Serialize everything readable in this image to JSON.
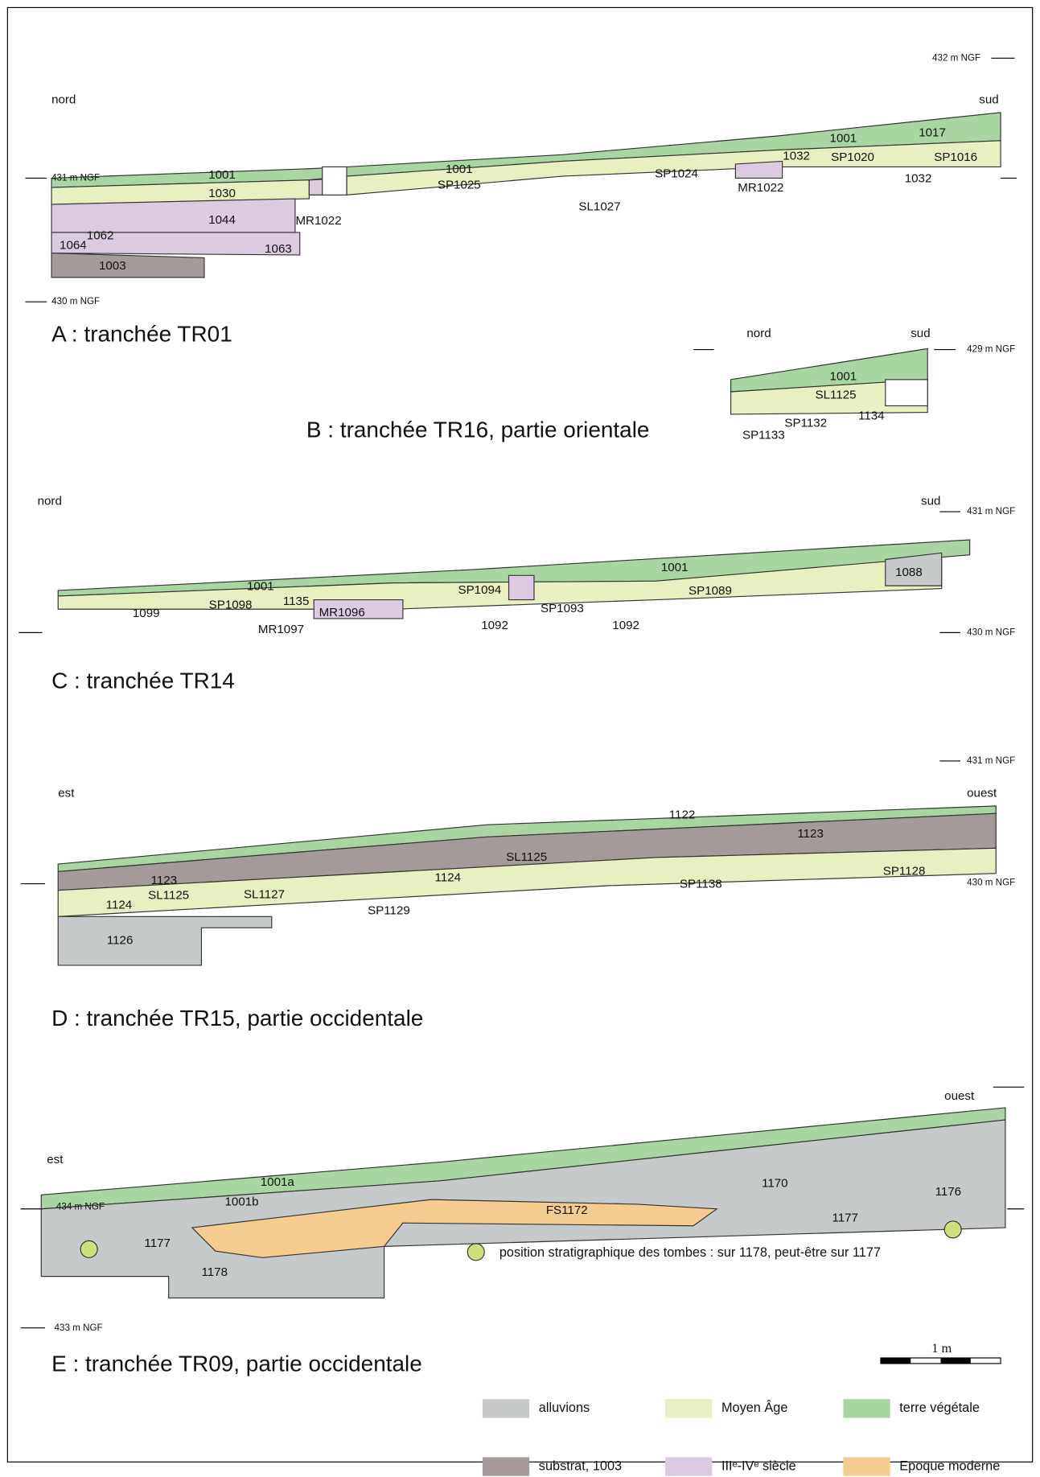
{
  "sections": [
    {
      "title": "A : tranchée TR01",
      "orientation": [
        "nord",
        "sud"
      ],
      "levels": [
        "432 m NGF",
        "431 m NGF",
        "430 m NGF"
      ],
      "units": [
        "1001",
        "1030",
        "1044",
        "1062",
        "1064",
        "1063",
        "1003",
        "MR1022",
        "1001",
        "SP1025",
        "SL1027",
        "SP1024",
        "MR1022",
        "1032",
        "1001",
        "SP1020",
        "1017",
        "SP1016",
        "1032"
      ]
    },
    {
      "title": "B : tranchée TR16, partie orientale",
      "orientation": [
        "nord",
        "sud"
      ],
      "levels": [
        "429 m NGF"
      ],
      "units": [
        "1001",
        "SL1125",
        "SP1132",
        "1134",
        "SP1133"
      ]
    },
    {
      "title": "C : tranchée TR14",
      "orientation": [
        "nord",
        "sud"
      ],
      "levels": [
        "431 m NGF",
        "430 m NGF"
      ],
      "units": [
        "1001",
        "SP1098",
        "1099",
        "1135",
        "MR1096",
        "MR1097",
        "SP1094",
        "SP1093",
        "1092",
        "1092",
        "1001",
        "SP1089",
        "1088"
      ]
    },
    {
      "title": "D : tranchée TR15, partie occidentale",
      "orientation": [
        "est",
        "ouest"
      ],
      "levels": [
        "431 m NGF",
        "430 m NGF"
      ],
      "units": [
        "1122",
        "1123",
        "SL1125",
        "1123",
        "1124",
        "SL1125",
        "SL1127",
        "1124",
        "SP1129",
        "SP1138",
        "SP1128",
        "1126"
      ]
    },
    {
      "title": "E : tranchée TR09, partie occidentale",
      "orientation": [
        "est",
        "ouest"
      ],
      "levels": [
        "434 m NGF",
        "433 m NGF"
      ],
      "units": [
        "1001a",
        "1001b",
        "1170",
        "1176",
        "FS1172",
        "1177",
        "1177",
        "1178"
      ]
    }
  ],
  "note": "position stratigraphique des tombes : sur 1178, peut-être sur 1177",
  "scale": "1 m",
  "legend": [
    "alluvions",
    "substrat, 1003",
    "Moyen Âge",
    "IIIᵉ-IVᵉ siècle",
    "terre végétale",
    "Epoque moderne"
  ]
}
